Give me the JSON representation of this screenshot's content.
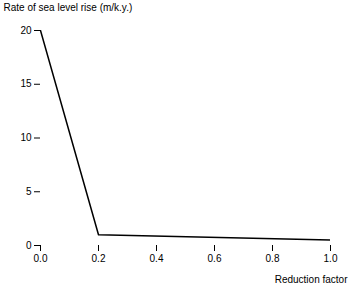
{
  "chart_data": {
    "type": "line",
    "x": [
      0,
      0.2,
      1.0
    ],
    "values": [
      20,
      1.0,
      0.5
    ],
    "color": "#000000",
    "xlabel": "Reduction factor",
    "ylabel": "Rate of sea level rise (m/k.y.)",
    "xlim": [
      0,
      1
    ],
    "ylim": [
      0,
      20
    ],
    "xticks": [
      {
        "value": 0,
        "label": "0.0"
      },
      0.2,
      0.4,
      0.6,
      0.8,
      {
        "value": 1.0,
        "label": "1.0"
      }
    ],
    "yticks": [
      0,
      5,
      10,
      15,
      20
    ]
  }
}
